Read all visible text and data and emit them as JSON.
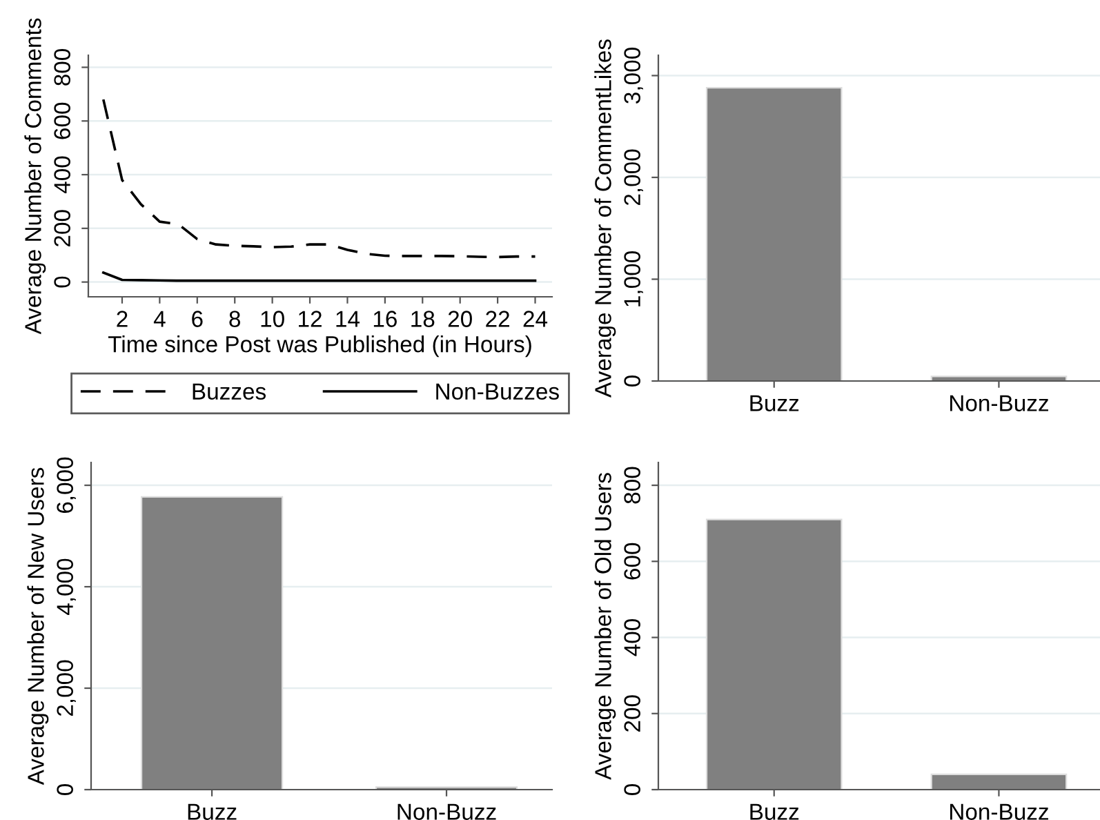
{
  "chart_data": [
    {
      "type": "line",
      "xlabel": "Time since Post was Published (in Hours)",
      "ylabel": "Average Number of Comments",
      "x": [
        1,
        2,
        3,
        4,
        5,
        6,
        7,
        8,
        9,
        10,
        11,
        12,
        13,
        14,
        15,
        16,
        17,
        18,
        19,
        20,
        21,
        22,
        23,
        24
      ],
      "series": [
        {
          "name": "Buzzes",
          "color": "#000000",
          "line_style": "dashed",
          "values": [
            680,
            380,
            290,
            225,
            215,
            160,
            140,
            135,
            133,
            130,
            132,
            140,
            140,
            120,
            105,
            98,
            97,
            97,
            97,
            96,
            94,
            93,
            95,
            95
          ]
        },
        {
          "name": "Non-Buzzes",
          "color": "#000000",
          "line_style": "solid",
          "values": [
            35,
            8,
            7,
            6,
            5,
            5,
            5,
            5,
            5,
            5,
            5,
            5,
            5,
            5,
            5,
            5,
            5,
            5,
            5,
            5,
            5,
            5,
            5,
            5
          ]
        }
      ],
      "xlim": [
        0.2,
        24.9
      ],
      "ylim": [
        -55,
        845
      ],
      "xticks": [
        2,
        4,
        6,
        8,
        10,
        12,
        14,
        16,
        18,
        20,
        22,
        24
      ],
      "yticks": [
        0,
        200,
        400,
        600,
        800
      ],
      "grid": "y",
      "legend": "bottom"
    },
    {
      "type": "bar",
      "ylabel": "Average Number of CommentLikes",
      "categories": [
        "Buzz",
        "Non-Buzz"
      ],
      "values": [
        2880,
        45
      ],
      "color": "#808080",
      "ylim": [
        0,
        3200
      ],
      "yticks": [
        {
          "value": 0,
          "label": "0"
        },
        {
          "value": 1000,
          "label": "1,000"
        },
        {
          "value": 2000,
          "label": "2,000"
        },
        {
          "value": 3000,
          "label": "3,000"
        }
      ],
      "grid": "y"
    },
    {
      "type": "bar",
      "ylabel": "Average Number of New Users",
      "categories": [
        "Buzz",
        "Non-Buzz"
      ],
      "values": [
        5770,
        50
      ],
      "color": "#808080",
      "ylim": [
        0,
        6450
      ],
      "yticks": [
        {
          "value": 0,
          "label": "0"
        },
        {
          "value": 2000,
          "label": "2,000"
        },
        {
          "value": 4000,
          "label": "4,000"
        },
        {
          "value": 6000,
          "label": "6,000"
        }
      ],
      "grid": "y"
    },
    {
      "type": "bar",
      "ylabel": "Average Number of Old Users",
      "categories": [
        "Buzz",
        "Non-Buzz"
      ],
      "values": [
        710,
        40
      ],
      "color": "#808080",
      "ylim": [
        0,
        860
      ],
      "yticks": [
        0,
        200,
        400,
        600,
        800
      ],
      "grid": "y"
    }
  ]
}
